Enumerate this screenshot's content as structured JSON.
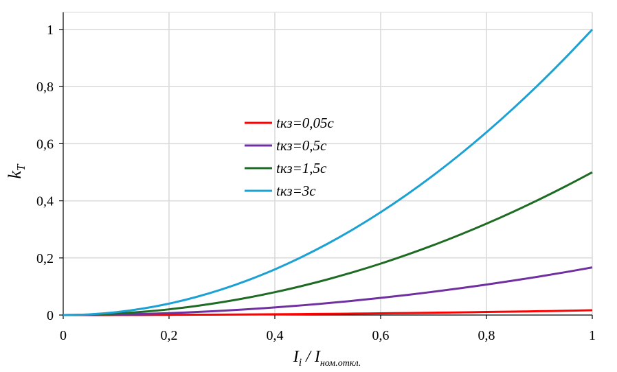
{
  "chart_data": {
    "type": "line",
    "x": [
      0,
      0.05,
      0.1,
      0.15,
      0.2,
      0.25,
      0.3,
      0.35,
      0.4,
      0.45,
      0.5,
      0.55,
      0.6,
      0.65,
      0.7,
      0.75,
      0.8,
      0.85,
      0.9,
      0.95,
      1
    ],
    "series": [
      {
        "name": "tкз=0,05с",
        "color": "#ff0000",
        "values": [
          0,
          4e-05,
          0.00017,
          0.0004,
          0.0007,
          0.0011,
          0.0015,
          0.0021,
          0.0027,
          0.0034,
          0.0042,
          0.005,
          0.006,
          0.007,
          0.0082,
          0.0094,
          0.0107,
          0.012,
          0.0135,
          0.015,
          0.0167
        ]
      },
      {
        "name": "tкз=0,5с",
        "color": "#7030a0",
        "values": [
          0,
          0.0004,
          0.0017,
          0.0038,
          0.0067,
          0.0104,
          0.015,
          0.0204,
          0.0267,
          0.0338,
          0.0417,
          0.0504,
          0.06,
          0.0704,
          0.0817,
          0.0938,
          0.1067,
          0.1204,
          0.135,
          0.1504,
          0.1667
        ]
      },
      {
        "name": "tкз=1,5с",
        "color": "#1e6b23",
        "values": [
          0,
          0.0013,
          0.005,
          0.0113,
          0.02,
          0.0313,
          0.045,
          0.0613,
          0.08,
          0.1013,
          0.125,
          0.1513,
          0.18,
          0.2113,
          0.245,
          0.2813,
          0.32,
          0.3613,
          0.405,
          0.4513,
          0.5
        ]
      },
      {
        "name": "tкз=3с",
        "color": "#1ba1d4",
        "values": [
          0,
          0.0025,
          0.01,
          0.0225,
          0.04,
          0.0625,
          0.09,
          0.1225,
          0.16,
          0.2025,
          0.25,
          0.3025,
          0.36,
          0.4225,
          0.49,
          0.5625,
          0.64,
          0.7225,
          0.81,
          0.9025,
          1
        ]
      }
    ],
    "xlim": [
      0,
      1
    ],
    "ylim": [
      0,
      1
    ],
    "xticks": [
      0,
      0.2,
      0.4,
      0.6,
      0.8,
      1
    ],
    "yticks": [
      0,
      0.2,
      0.4,
      0.6,
      0.8,
      1
    ],
    "xtick_labels": [
      "0",
      "0,2",
      "0,4",
      "0,6",
      "0,8",
      "1"
    ],
    "ytick_labels": [
      "0",
      "0,2",
      "0,4",
      "0,6",
      "0,8",
      "1"
    ],
    "xlabel": {
      "main": "I",
      "main_sub": "i",
      "sep": " / I",
      "denom_sub": "ном.откл."
    },
    "ylabel": {
      "main": "k",
      "sub": "T"
    },
    "grid": true,
    "legend_position": "center-left",
    "grid_color": "#d9d9d9",
    "axis_color": "#000000"
  }
}
